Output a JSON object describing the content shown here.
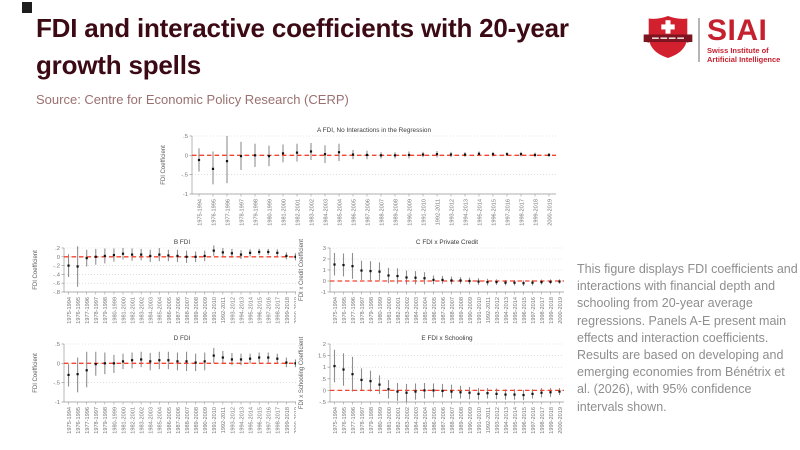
{
  "header": {
    "title": "FDI and interactive coefficients with 20-year growth spells",
    "title_line1": "FDI and interactive coefficients with 20-year",
    "title_line2": "growth spells",
    "source_label": "Source: Centre for Economic Policy Research (CERP)"
  },
  "logo": {
    "acronym": "SIAI",
    "subtitle_line1": "Swiss Institute of",
    "subtitle_line2": "Artificial Intelligence"
  },
  "description": {
    "text": "This figure displays FDI coefficients and interactions with financial depth and schooling from 20-year average regressions. Panels A-E present main effects and interaction coefficients. Results are based on developing and emerging economies from Bénétrix et al. (2026), with 95% confidence intervals shown."
  },
  "colors": {
    "title_maroon": "#3b0a14",
    "source_red": "#9a7170",
    "description_gray": "#8e8e8e",
    "brand_red": "#d2202f",
    "brand_dark_red": "#7d1420",
    "zero_line_red": "#f4442e",
    "errorbar_gray": "#8f8f8f",
    "point_black": "#111111",
    "grid_gray": "#c9c9c9",
    "axis_gray": "#999999",
    "tick_text_gray": "#767676",
    "panel_title_gray": "#3c3c3c"
  },
  "chart_data": {
    "type": "scatter",
    "note": "coefficient point estimates with 95% confidence interval error bars; dotted horizontal gridlines; red dashed reference line at zero; no legend",
    "categories": [
      "1975-1994",
      "1976-1995",
      "1977-1996",
      "1978-1997",
      "1979-1998",
      "1980-1999",
      "1981-2000",
      "1982-2001",
      "1983-2002",
      "1984-2003",
      "1985-2004",
      "1986-2005",
      "1987-2006",
      "1988-2007",
      "1989-2008",
      "1990-2009",
      "1991-2010",
      "1992-2011",
      "1993-2012",
      "1994-2013",
      "1995-2014",
      "1996-2015",
      "1997-2016",
      "1998-2017",
      "1999-2018",
      "2000-2019"
    ],
    "panels": [
      {
        "key": "A",
        "title": "A FDI, No Interactions in the Regression",
        "ylabel": "FDI Coefficient",
        "ylim": [
          -1,
          0.5
        ],
        "yticks": [
          0.5,
          0,
          -0.5,
          -1
        ],
        "ytick_labels": [
          ".5",
          "0",
          "-.5",
          "-1"
        ],
        "zero_line": 0,
        "estimates": [
          -0.12,
          -0.35,
          -0.15,
          -0.02,
          0.0,
          -0.02,
          0.05,
          0.07,
          0.1,
          0.03,
          0.08,
          0.02,
          0.01,
          0.0,
          0.0,
          0.01,
          0.02,
          0.03,
          0.02,
          0.02,
          0.04,
          0.03,
          0.03,
          0.03,
          0.01,
          0.01
        ],
        "ci_low": [
          -0.42,
          -0.75,
          -0.72,
          -0.38,
          -0.3,
          -0.28,
          -0.18,
          -0.16,
          -0.12,
          -0.2,
          -0.15,
          -0.1,
          -0.1,
          -0.08,
          -0.08,
          -0.08,
          -0.05,
          -0.05,
          -0.05,
          -0.04,
          -0.02,
          -0.03,
          -0.02,
          -0.03,
          -0.05,
          -0.04
        ],
        "ci_high": [
          0.18,
          0.1,
          0.5,
          0.35,
          0.3,
          0.25,
          0.28,
          0.3,
          0.32,
          0.26,
          0.3,
          0.14,
          0.12,
          0.08,
          0.08,
          0.1,
          0.09,
          0.11,
          0.09,
          0.08,
          0.1,
          0.09,
          0.08,
          0.09,
          0.07,
          0.06
        ]
      },
      {
        "key": "B",
        "title": "B FDI",
        "ylabel": "FDI Coefficient",
        "ylim": [
          -0.8,
          0.2
        ],
        "yticks": [
          0.2,
          0,
          -0.2,
          -0.4,
          -0.6,
          -0.8
        ],
        "ytick_labels": [
          ".2",
          "0",
          "-.2",
          "-.4",
          "-.6",
          "-.8"
        ],
        "zero_line": 0,
        "estimates": [
          -0.2,
          -0.22,
          -0.03,
          0.0,
          0.02,
          0.04,
          0.07,
          0.05,
          0.05,
          0.02,
          0.05,
          0.03,
          0.02,
          0.0,
          0.0,
          0.02,
          0.14,
          0.1,
          0.08,
          0.05,
          0.09,
          0.11,
          0.11,
          0.09,
          0.02,
          0.0
        ],
        "ci_low": [
          -0.46,
          -0.68,
          -0.22,
          -0.18,
          -0.15,
          -0.11,
          -0.06,
          -0.09,
          -0.08,
          -0.12,
          -0.1,
          -0.1,
          -0.12,
          -0.14,
          -0.12,
          -0.1,
          0.02,
          0.0,
          -0.02,
          -0.05,
          0.01,
          0.04,
          0.04,
          0.01,
          -0.06,
          -0.08
        ],
        "ci_high": [
          0.06,
          0.24,
          0.16,
          0.18,
          0.19,
          0.19,
          0.2,
          0.19,
          0.18,
          0.16,
          0.2,
          0.16,
          0.16,
          0.14,
          0.12,
          0.14,
          0.26,
          0.2,
          0.18,
          0.15,
          0.17,
          0.18,
          0.18,
          0.17,
          0.1,
          0.08
        ]
      },
      {
        "key": "C",
        "title": "C FDI x Private Credit",
        "ylabel": "FDI x Credit Coefficient",
        "ylim": [
          -1,
          3
        ],
        "yticks": [
          3,
          2,
          1,
          0,
          -1
        ],
        "ytick_labels": [
          "3",
          "2",
          "1",
          "0",
          "-1"
        ],
        "zero_line": 0,
        "estimates": [
          1.5,
          1.45,
          1.35,
          0.95,
          0.9,
          0.85,
          0.5,
          0.45,
          0.32,
          0.3,
          0.25,
          0.1,
          0.1,
          0.05,
          0.05,
          0.0,
          -0.05,
          -0.1,
          -0.1,
          -0.15,
          -0.15,
          -0.2,
          -0.15,
          -0.1,
          -0.08,
          -0.05
        ],
        "ci_low": [
          0.5,
          0.42,
          0.2,
          0.1,
          0.05,
          0.05,
          -0.2,
          -0.25,
          -0.32,
          -0.3,
          -0.3,
          -0.3,
          -0.25,
          -0.3,
          -0.25,
          -0.3,
          -0.35,
          -0.4,
          -0.35,
          -0.4,
          -0.4,
          -0.45,
          -0.4,
          -0.33,
          -0.3,
          -0.25
        ],
        "ci_high": [
          2.55,
          2.5,
          2.55,
          1.85,
          1.8,
          1.7,
          1.2,
          1.15,
          0.95,
          0.9,
          0.8,
          0.5,
          0.45,
          0.4,
          0.35,
          0.3,
          0.25,
          0.2,
          0.15,
          0.1,
          0.1,
          0.05,
          0.1,
          0.13,
          0.15,
          0.15
        ]
      },
      {
        "key": "D",
        "title": "D FDI",
        "ylabel": "FDI Coefficient",
        "ylim": [
          -1,
          0.5
        ],
        "yticks": [
          0.5,
          0,
          -0.5,
          -1
        ],
        "ytick_labels": [
          ".5",
          "0",
          "-.5",
          "-1"
        ],
        "zero_line": 0,
        "estimates": [
          -0.3,
          -0.28,
          -0.18,
          -0.02,
          0.0,
          0.0,
          0.05,
          0.08,
          0.1,
          0.05,
          0.08,
          0.08,
          0.05,
          0.05,
          0.02,
          0.05,
          0.2,
          0.15,
          0.1,
          0.1,
          0.12,
          0.15,
          0.15,
          0.12,
          0.02,
          0.0
        ],
        "ci_low": [
          -0.6,
          -0.75,
          -0.62,
          -0.32,
          -0.28,
          -0.25,
          -0.15,
          -0.13,
          -0.1,
          -0.18,
          -0.15,
          -0.15,
          -0.18,
          -0.2,
          -0.2,
          -0.18,
          0.0,
          -0.02,
          -0.05,
          -0.05,
          0.0,
          0.02,
          0.02,
          0.0,
          -0.1,
          -0.1
        ],
        "ci_high": [
          -0.02,
          0.15,
          0.3,
          0.3,
          0.28,
          0.22,
          0.25,
          0.28,
          0.3,
          0.27,
          0.3,
          0.3,
          0.28,
          0.3,
          0.25,
          0.28,
          0.4,
          0.32,
          0.27,
          0.25,
          0.25,
          0.28,
          0.28,
          0.25,
          0.15,
          0.1
        ]
      },
      {
        "key": "E",
        "title": "E FDI x Schooling",
        "ylabel": "FDI x Schooling Coefficient",
        "ylim": [
          -0.5,
          2
        ],
        "yticks": [
          2,
          1.5,
          1,
          0.5,
          0,
          -0.5
        ],
        "ytick_labels": [
          "2",
          "1.5",
          "1",
          ".5",
          "0",
          "-.5"
        ],
        "zero_line": 0,
        "estimates": [
          1.05,
          0.9,
          0.7,
          0.45,
          0.4,
          0.25,
          0.05,
          -0.05,
          -0.1,
          -0.05,
          0.0,
          0.0,
          -0.02,
          -0.05,
          -0.08,
          -0.1,
          -0.15,
          -0.12,
          -0.15,
          -0.18,
          -0.18,
          -0.2,
          -0.15,
          -0.1,
          -0.08,
          -0.05
        ],
        "ci_low": [
          0.35,
          0.2,
          -0.05,
          0.0,
          -0.05,
          -0.15,
          -0.35,
          -0.45,
          -0.5,
          -0.4,
          -0.35,
          -0.3,
          -0.3,
          -0.35,
          -0.35,
          -0.38,
          -0.4,
          -0.35,
          -0.38,
          -0.4,
          -0.4,
          -0.42,
          -0.35,
          -0.3,
          -0.28,
          -0.2
        ],
        "ci_high": [
          1.75,
          1.6,
          1.45,
          0.95,
          0.85,
          0.65,
          0.45,
          0.32,
          0.28,
          0.3,
          0.32,
          0.3,
          0.28,
          0.25,
          0.2,
          0.15,
          0.1,
          0.1,
          0.08,
          0.05,
          0.05,
          0.02,
          0.05,
          0.1,
          0.1,
          0.1
        ]
      }
    ]
  }
}
